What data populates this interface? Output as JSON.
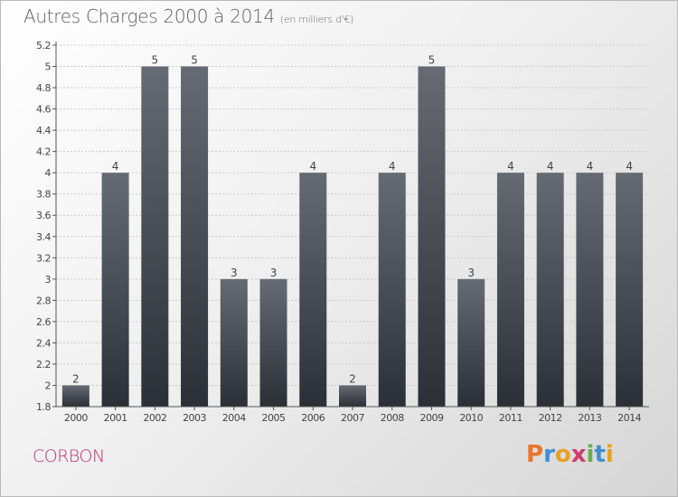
{
  "header": {
    "title": "Autres Charges 2000 à 2014",
    "subtitle": "(en milliers d'€)"
  },
  "footer": {
    "commune": "CORBON",
    "logo_letters": [
      "P",
      "r",
      "o",
      "x",
      "i",
      "t",
      "i"
    ],
    "logo_colors": [
      "#e8762c",
      "#3f8fd4",
      "#e8a020",
      "#d23a6e",
      "#6ab04c",
      "#3f8fd4",
      "#e8a020"
    ]
  },
  "colors": {
    "bar_top": "#666b73",
    "bar_bottom": "#2b2f36",
    "grid": "#c8c8c8",
    "axis": "#555555",
    "text": "#444444"
  },
  "chart_data": {
    "type": "bar",
    "categories": [
      "2000",
      "2001",
      "2002",
      "2003",
      "2004",
      "2005",
      "2006",
      "2007",
      "2008",
      "2009",
      "2010",
      "2011",
      "2012",
      "2013",
      "2014"
    ],
    "values": [
      2,
      4,
      5,
      5,
      3,
      3,
      4,
      2,
      4,
      5,
      3,
      4,
      4,
      4,
      4
    ],
    "value_labels": [
      "2",
      "4",
      "5",
      "5",
      "3",
      "3",
      "4",
      "2",
      "4",
      "5",
      "3",
      "4",
      "4",
      "4",
      "4"
    ],
    "ylim": [
      1.8,
      5.2
    ],
    "yticks": [
      1.8,
      2,
      2.2,
      2.4,
      2.6,
      2.8,
      3,
      3.2,
      3.4,
      3.6,
      3.8,
      4,
      4.2,
      4.4,
      4.6,
      4.8,
      5,
      5.2
    ],
    "ytick_labels": [
      "1.8",
      "2",
      "2.2",
      "2.4",
      "2.6",
      "2.8",
      "3",
      "3.2",
      "3.4",
      "3.6",
      "3.8",
      "4",
      "4.2",
      "4.4",
      "4.6",
      "4.8",
      "5",
      "5.2"
    ],
    "grid": true,
    "legend": "none"
  }
}
